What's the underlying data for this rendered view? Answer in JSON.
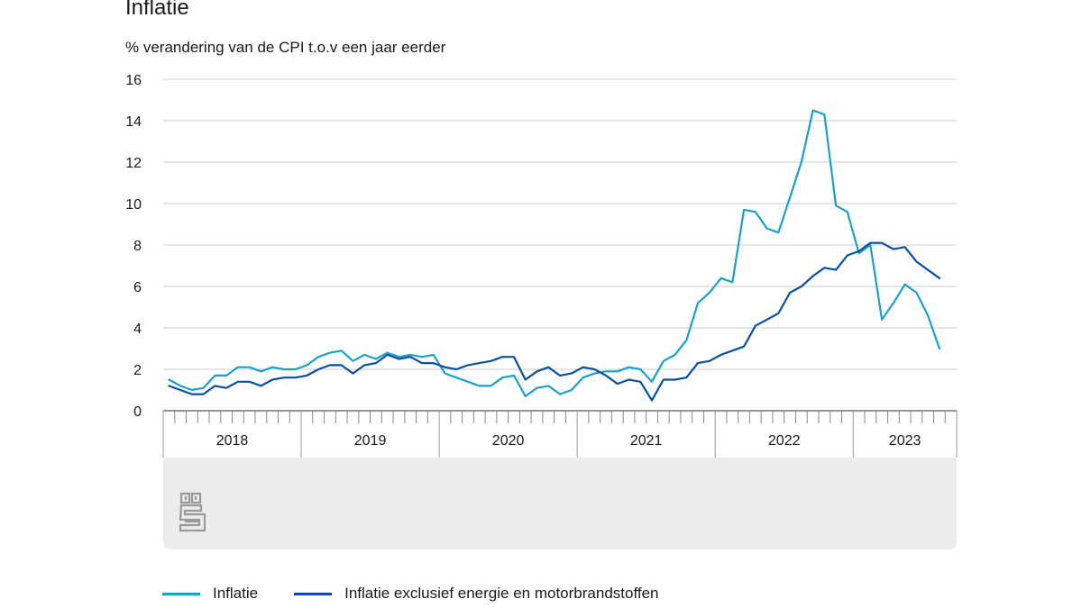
{
  "title": "Inflatie",
  "subtitle": "% verandering van de CPI t.o.v een jaar eerder",
  "colors": {
    "inflatie": "#1ba0c8",
    "exclusief": "#0b4f9e",
    "grid": "#cccccc",
    "axisBand": "#ececec"
  },
  "logo_icon": "cbs-logo-icon",
  "chart_data": {
    "type": "line",
    "title": "Inflatie",
    "ylabel": "% verandering van de CPI t.o.v een jaar eerder",
    "ylim": [
      0,
      16
    ],
    "yticks": [
      0,
      2,
      4,
      6,
      8,
      10,
      12,
      14,
      16
    ],
    "grid": true,
    "legend_position": "bottom",
    "year_labels": [
      "2018",
      "2019",
      "2020",
      "2021",
      "2022",
      "2023"
    ],
    "x_start": "2018-01",
    "x_frequency": "monthly",
    "series": [
      {
        "name": "Inflatie",
        "values": [
          1.5,
          1.2,
          1.0,
          1.1,
          1.7,
          1.7,
          2.1,
          2.1,
          1.9,
          2.1,
          2.0,
          2.0,
          2.2,
          2.6,
          2.8,
          2.9,
          2.4,
          2.7,
          2.5,
          2.8,
          2.6,
          2.7,
          2.6,
          2.7,
          1.8,
          1.6,
          1.4,
          1.2,
          1.2,
          1.6,
          1.7,
          0.7,
          1.1,
          1.2,
          0.8,
          1.0,
          1.6,
          1.8,
          1.9,
          1.9,
          2.1,
          2.0,
          1.4,
          2.4,
          2.7,
          3.4,
          5.2,
          5.7,
          6.4,
          6.2,
          9.7,
          9.6,
          8.8,
          8.6,
          10.3,
          12.0,
          14.5,
          14.3,
          9.9,
          9.6,
          7.6,
          8.0,
          4.4,
          5.2,
          6.1,
          5.7,
          4.6,
          3.0
        ]
      },
      {
        "name": "Inflatie exclusief energie en motorbrandstoffen",
        "values": [
          1.2,
          1.0,
          0.8,
          0.8,
          1.2,
          1.1,
          1.4,
          1.4,
          1.2,
          1.5,
          1.6,
          1.6,
          1.7,
          2.0,
          2.2,
          2.2,
          1.8,
          2.2,
          2.3,
          2.7,
          2.5,
          2.6,
          2.3,
          2.3,
          2.1,
          2.0,
          2.2,
          2.3,
          2.4,
          2.6,
          2.6,
          1.5,
          1.9,
          2.1,
          1.7,
          1.8,
          2.1,
          2.0,
          1.7,
          1.3,
          1.5,
          1.4,
          0.5,
          1.5,
          1.5,
          1.6,
          2.3,
          2.4,
          2.7,
          2.9,
          3.1,
          4.1,
          4.4,
          4.7,
          5.7,
          6.0,
          6.5,
          6.9,
          6.8,
          7.5,
          7.7,
          8.1,
          8.1,
          7.8,
          7.9,
          7.2,
          6.8,
          6.4
        ]
      }
    ]
  },
  "legend": [
    {
      "label": "Inflatie",
      "color": "#1ba0c8"
    },
    {
      "label": "Inflatie exclusief energie en motorbrandstoffen",
      "color": "#0b4f9e"
    }
  ]
}
